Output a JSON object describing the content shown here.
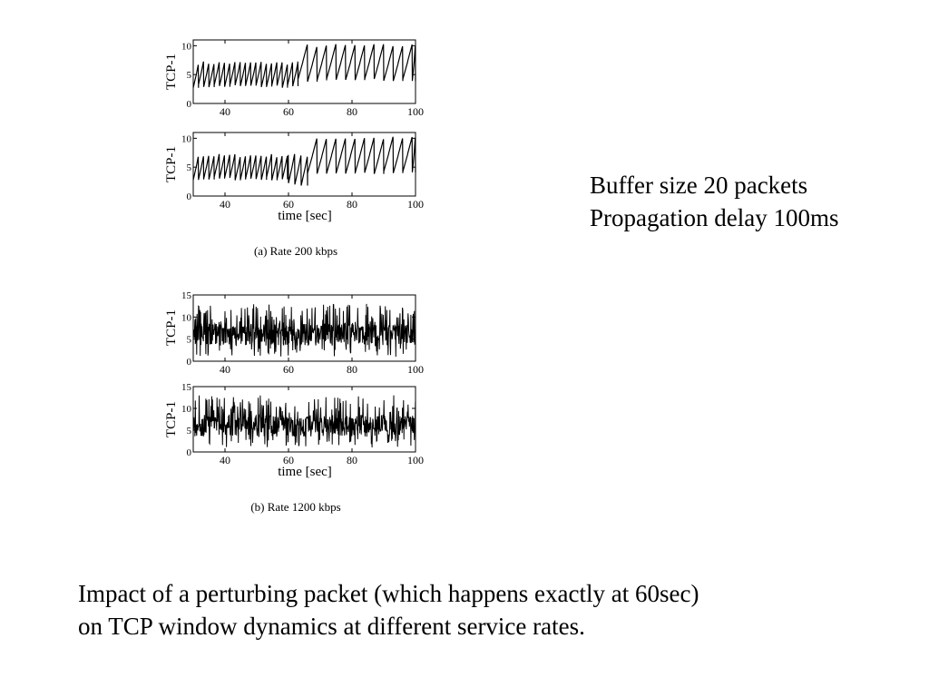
{
  "note": {
    "line1": "Buffer size 20 packets",
    "line2": "Propagation delay 100ms"
  },
  "caption": {
    "line1": "Impact of a perturbing packet (which happens exactly at 60sec)",
    "line2": "on TCP window dynamics at different service rates."
  },
  "chart_data": [
    {
      "type": "line",
      "panel": "a-top",
      "ylabel": "TCP-1",
      "xlim": [
        30,
        100
      ],
      "ylim": [
        0,
        11
      ],
      "xticks": [
        40,
        60,
        80,
        100
      ],
      "yticks": [
        0,
        5,
        10
      ],
      "series": [
        {
          "pattern": "sawtooth",
          "segments": [
            {
              "from": 30,
              "to": 63,
              "min": 3,
              "max": 7,
              "period": 1.65
            },
            {
              "from": 63,
              "to": 100,
              "min": 4,
              "max": 10,
              "period": 3.0
            }
          ]
        }
      ]
    },
    {
      "type": "line",
      "panel": "a-bottom",
      "ylabel": "TCP-1",
      "xlabel": "time [sec]",
      "xlim": [
        30,
        100
      ],
      "ylim": [
        0,
        11
      ],
      "xticks": [
        40,
        60,
        80,
        100
      ],
      "yticks": [
        0,
        5,
        10
      ],
      "series": [
        {
          "pattern": "sawtooth",
          "segments": [
            {
              "from": 30,
              "to": 60,
              "min": 3,
              "max": 7,
              "period": 1.65
            },
            {
              "from": 60,
              "to": 66,
              "min": 2,
              "max": 7,
              "period": 2.0
            },
            {
              "from": 66,
              "to": 100,
              "min": 4,
              "max": 10,
              "period": 3.0
            }
          ]
        }
      ]
    },
    {
      "type": "line",
      "panel": "b-top",
      "ylabel": "TCP-1",
      "xlim": [
        30,
        100
      ],
      "ylim": [
        0,
        15
      ],
      "xticks": [
        40,
        60,
        80,
        100
      ],
      "yticks": [
        0,
        5,
        10,
        15
      ],
      "series": [
        {
          "pattern": "noisy",
          "min": 1,
          "max": 14,
          "mean": 6
        }
      ]
    },
    {
      "type": "line",
      "panel": "b-bottom",
      "ylabel": "TCP-1",
      "xlabel": "time [sec]",
      "xlim": [
        30,
        100
      ],
      "ylim": [
        0,
        15
      ],
      "xticks": [
        40,
        60,
        80,
        100
      ],
      "yticks": [
        0,
        5,
        10,
        15
      ],
      "series": [
        {
          "pattern": "noisy",
          "min": 1,
          "max": 14,
          "mean": 6
        }
      ]
    }
  ],
  "subcaptions": {
    "a": "(a) Rate 200 kbps",
    "b": "(b) Rate 1200 kbps"
  }
}
